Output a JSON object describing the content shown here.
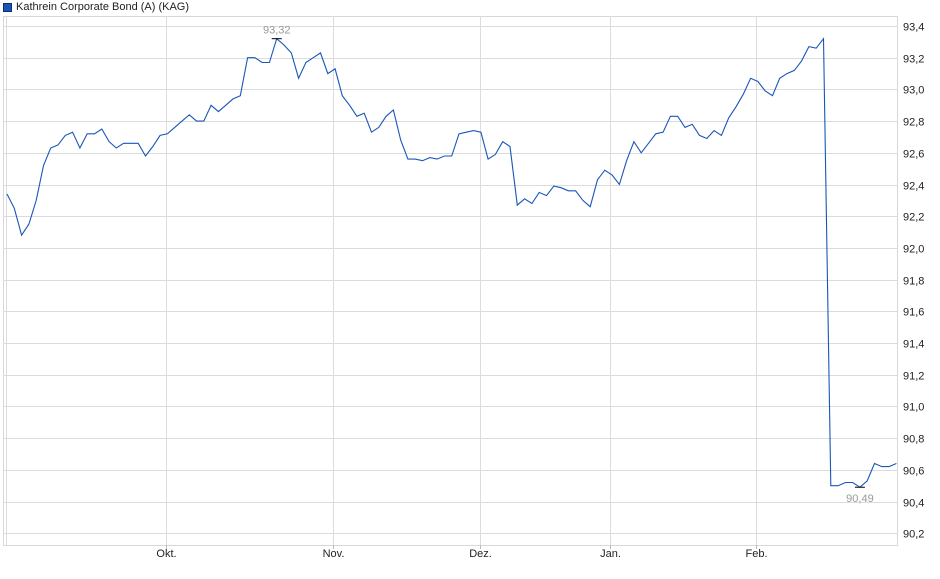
{
  "chart_data": {
    "type": "line",
    "title": "",
    "legend": {
      "position": "top-left",
      "entries": [
        "Kathrein Corporate Bond (A) (KAG)"
      ]
    },
    "series": [
      {
        "name": "Kathrein Corporate Bond (A) (KAG)",
        "color": "#1a56b8",
        "values": [
          92.34,
          92.25,
          92.08,
          92.15,
          92.3,
          92.52,
          92.63,
          92.65,
          92.71,
          92.73,
          92.63,
          92.72,
          92.72,
          92.75,
          92.67,
          92.63,
          92.66,
          92.66,
          92.66,
          92.58,
          92.64,
          92.71,
          92.72,
          92.76,
          92.8,
          92.84,
          92.8,
          92.8,
          92.9,
          92.86,
          92.9,
          92.94,
          92.96,
          93.2,
          93.2,
          93.17,
          93.17,
          93.32,
          93.28,
          93.23,
          93.07,
          93.17,
          93.2,
          93.23,
          93.1,
          93.13,
          92.96,
          92.9,
          92.83,
          92.85,
          92.73,
          92.76,
          92.83,
          92.87,
          92.68,
          92.56,
          92.56,
          92.55,
          92.57,
          92.56,
          92.58,
          92.58,
          92.72,
          92.73,
          92.74,
          92.73,
          92.56,
          92.59,
          92.67,
          92.64,
          92.27,
          92.31,
          92.28,
          92.35,
          92.33,
          92.39,
          92.38,
          92.36,
          92.36,
          92.3,
          92.26,
          92.43,
          92.49,
          92.46,
          92.4,
          92.55,
          92.67,
          92.6,
          92.66,
          92.72,
          92.73,
          92.83,
          92.83,
          92.76,
          92.78,
          92.71,
          92.69,
          92.74,
          92.71,
          92.82,
          92.89,
          92.97,
          93.07,
          93.05,
          92.99,
          92.96,
          93.07,
          93.1,
          93.12,
          93.18,
          93.27,
          93.26,
          93.32,
          90.5,
          90.5,
          90.52,
          90.52,
          90.49,
          90.53,
          90.64,
          90.62,
          90.62,
          90.64
        ]
      }
    ],
    "annotations": {
      "max": {
        "label": "93,32",
        "value": 93.32,
        "index": 37
      },
      "min": {
        "label": "90,49",
        "value": 90.49,
        "index": 117
      }
    },
    "x_ticks": [
      {
        "label": "Okt.",
        "index": 21.8
      },
      {
        "label": "Nov.",
        "index": 44.7
      },
      {
        "label": "Dez.",
        "index": 64.9
      },
      {
        "label": "Jan.",
        "index": 82.7
      },
      {
        "label": "Feb.",
        "index": 102.7
      }
    ],
    "y_ticks": [
      "93,4",
      "93,2",
      "93,0",
      "92,8",
      "92,6",
      "92,4",
      "92,2",
      "92,0",
      "91,8",
      "91,6",
      "91,4",
      "91,2",
      "91,0",
      "90,8",
      "90,6",
      "90,4",
      "90,2"
    ],
    "ylim": [
      90.2,
      93.4
    ],
    "y_axis_position": "right",
    "grid": true,
    "xlabel": "",
    "ylabel": ""
  }
}
